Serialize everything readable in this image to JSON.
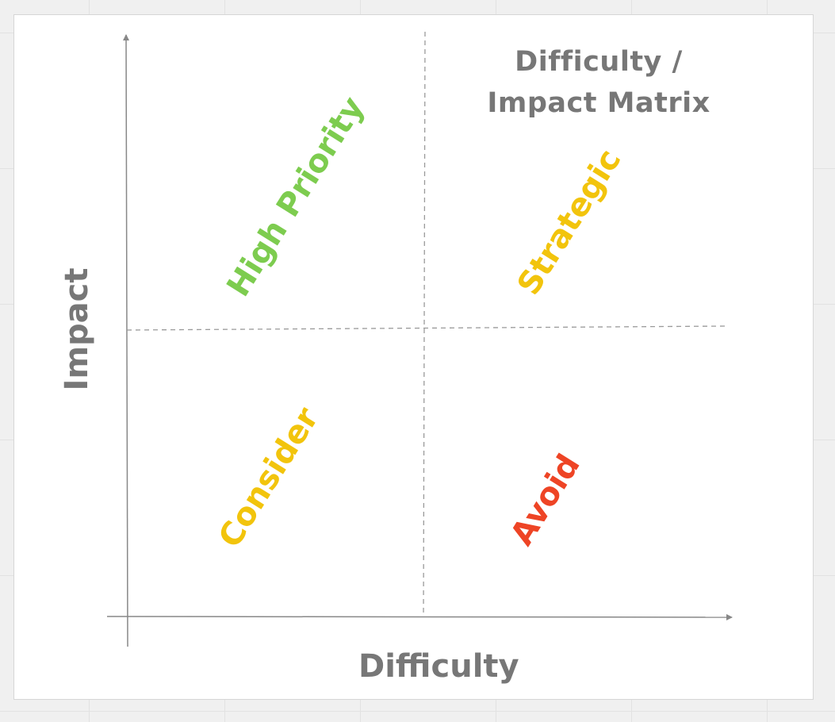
{
  "title": {
    "line1": "Difficulty /",
    "line2": "Impact Matrix"
  },
  "axes": {
    "x_label": "Difficulty",
    "y_label": "Impact"
  },
  "quadrants": {
    "top_left": {
      "label": "High Priority",
      "color": "#7dcc4f"
    },
    "top_right": {
      "label": "Strategic",
      "color": "#f2c40c"
    },
    "bottom_left": {
      "label": "Consider",
      "color": "#f2c40c"
    },
    "bottom_right": {
      "label": "Avoid",
      "color": "#ee4425"
    }
  },
  "colors": {
    "text_gray": "#777777",
    "axis_line": "#888888",
    "divider_line": "#9a9a9a"
  }
}
